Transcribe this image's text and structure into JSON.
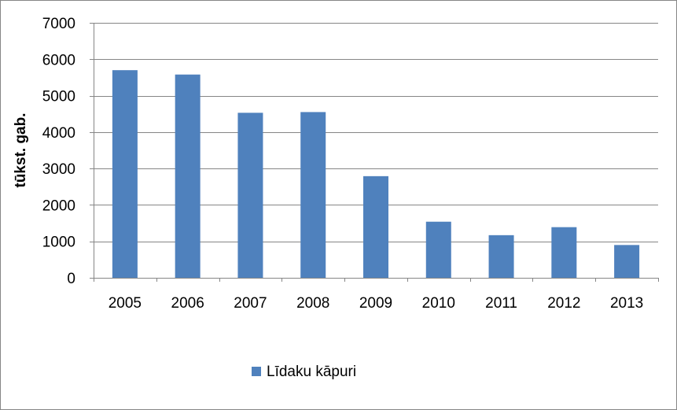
{
  "chart_data": {
    "type": "bar",
    "categories": [
      "2005",
      "2006",
      "2007",
      "2008",
      "2009",
      "2010",
      "2011",
      "2012",
      "2013"
    ],
    "series": [
      {
        "name": "Līdaku kāpuri",
        "color": "#4F81BD",
        "values": [
          5700,
          5580,
          4530,
          4550,
          2790,
          1540,
          1170,
          1390,
          900
        ]
      }
    ],
    "ylabel": "tūkst. gab.",
    "ylim": [
      0,
      7000
    ],
    "yticks": [
      0,
      1000,
      2000,
      3000,
      4000,
      5000,
      6000,
      7000
    ],
    "grid": true,
    "legend": "bottom"
  }
}
